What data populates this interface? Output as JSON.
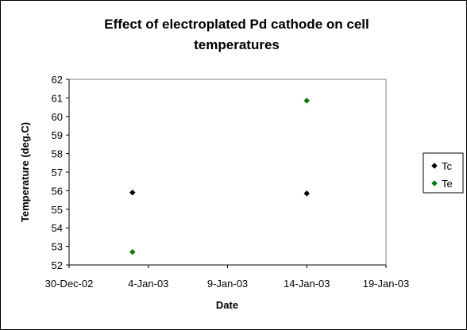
{
  "chart_data": {
    "type": "scatter",
    "title_lines": [
      "Effect of electroplated Pd cathode on cell",
      "temperatures"
    ],
    "xlabel": "Date",
    "ylabel": "Temperature (deg.C)",
    "x_ticks": [
      "30-Dec-02",
      "4-Jan-03",
      "9-Jan-03",
      "14-Jan-03",
      "19-Jan-03"
    ],
    "x_tick_dates": [
      "2002-12-30",
      "2003-01-04",
      "2003-01-09",
      "2003-01-14",
      "2003-01-19"
    ],
    "xlim": [
      "2002-12-30",
      "2003-01-19"
    ],
    "y_ticks": [
      52,
      53,
      54,
      55,
      56,
      57,
      58,
      59,
      60,
      61,
      62
    ],
    "ylim": [
      52,
      62
    ],
    "grid": false,
    "legend_position": "right",
    "series": [
      {
        "name": "Tc",
        "color": "#000000",
        "marker": "diamond",
        "points": [
          {
            "x": "2003-01-03",
            "y": 55.9
          },
          {
            "x": "2003-01-14",
            "y": 55.85
          }
        ]
      },
      {
        "name": "Te",
        "color": "#008000",
        "marker": "diamond",
        "points": [
          {
            "x": "2003-01-03",
            "y": 52.7
          },
          {
            "x": "2003-01-14",
            "y": 60.85
          }
        ]
      }
    ]
  }
}
